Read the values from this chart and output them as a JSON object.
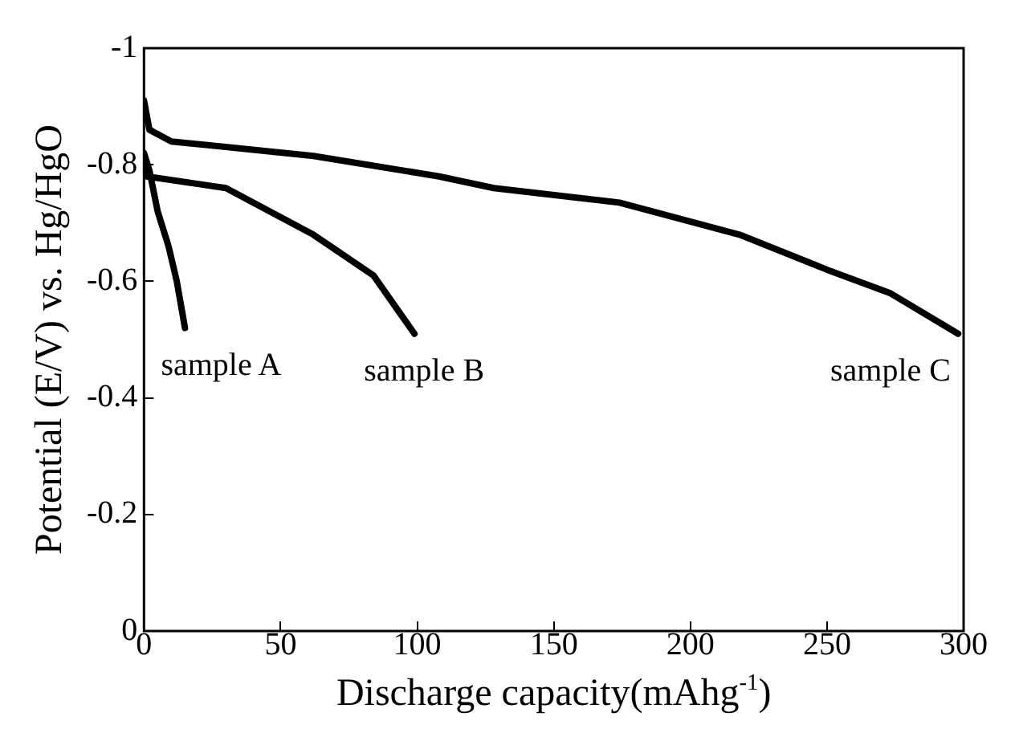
{
  "chart_data": {
    "type": "line",
    "xlabel": "Discharge capacity(mAhg$^{-1}$)",
    "ylabel": "Potential (E/V) vs. Hg/HgO",
    "xlim": [
      0,
      300
    ],
    "xticks": [
      0,
      50,
      100,
      150,
      200,
      250,
      300
    ],
    "ylim": [
      0,
      -1
    ],
    "yticks": [
      0,
      -0.2,
      -0.4,
      -0.6,
      -0.8,
      -1
    ],
    "grid": false,
    "legend": false,
    "marker": "none",
    "line_style": "solid",
    "series": [
      {
        "color": "#000000",
        "x": [
          0,
          2,
          5,
          9,
          12,
          15
        ],
        "values": [
          -0.82,
          -0.79,
          -0.72,
          -0.66,
          -0.6,
          -0.52
        ]
      },
      {
        "color": "#000000",
        "x": [
          0,
          1,
          30,
          62,
          84,
          99
        ],
        "values": [
          -0.8,
          -0.78,
          -0.76,
          -0.68,
          -0.61,
          -0.51
        ]
      },
      {
        "color": "#000000",
        "x": [
          0,
          2,
          10,
          62,
          108,
          128,
          174,
          218,
          250,
          273,
          298
        ],
        "values": [
          -0.91,
          -0.86,
          -0.84,
          -0.815,
          -0.78,
          -0.76,
          -0.735,
          -0.68,
          -0.62,
          -0.58,
          -0.51
        ]
      }
    ],
    "annotations": [
      "sample A",
      "sample B",
      "sample C"
    ]
  }
}
